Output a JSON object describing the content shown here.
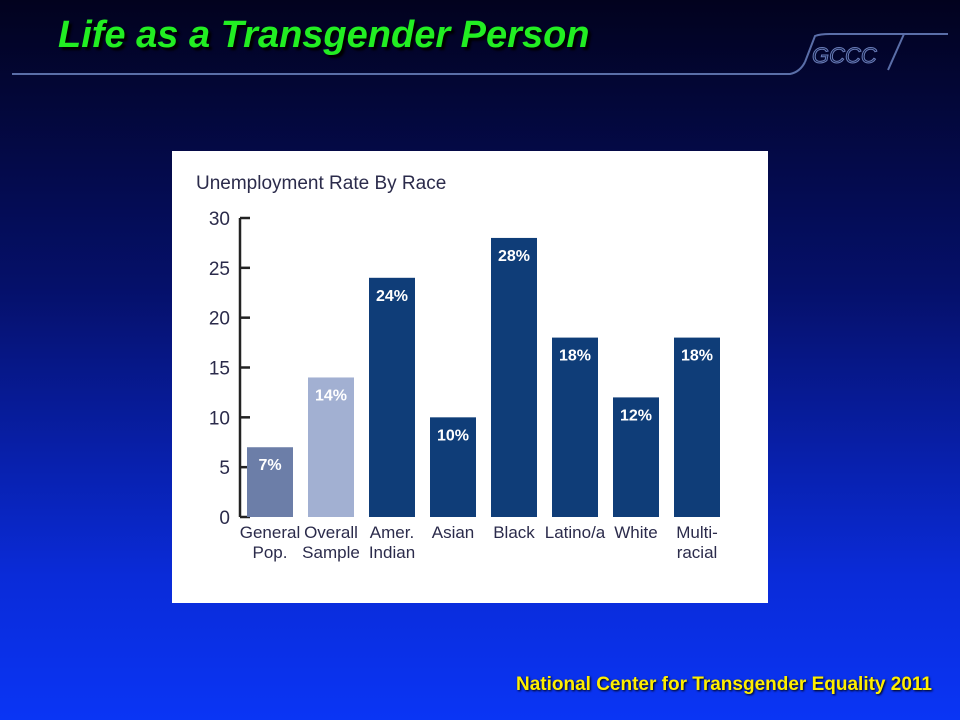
{
  "slide": {
    "title": "Life as a Transgender Person",
    "logo_text": "GCCC",
    "footer": "National Center for Transgender Equality 2011"
  },
  "chart_data": {
    "type": "bar",
    "title": "Unemployment Rate By Race",
    "xlabel": "",
    "ylabel": "",
    "ylim": [
      0,
      30
    ],
    "yticks": [
      0,
      5,
      10,
      15,
      20,
      25,
      30
    ],
    "categories": [
      [
        "General",
        "Pop."
      ],
      [
        "Overall",
        "Sample"
      ],
      [
        "Amer.",
        "Indian"
      ],
      [
        "Asian"
      ],
      [
        "Black"
      ],
      [
        "Latino/a"
      ],
      [
        "White"
      ],
      [
        "Multi-",
        "racial"
      ]
    ],
    "values": [
      7,
      14,
      24,
      10,
      28,
      18,
      12,
      18
    ],
    "value_labels": [
      "7%",
      "14%",
      "24%",
      "10%",
      "28%",
      "18%",
      "12%",
      "18%"
    ],
    "bar_colors": [
      "#6c7ea8",
      "#a2b0d2",
      "#0f3d78",
      "#0f3d78",
      "#0f3d78",
      "#0f3d78",
      "#0f3d78",
      "#0f3d78"
    ],
    "grid": false
  }
}
